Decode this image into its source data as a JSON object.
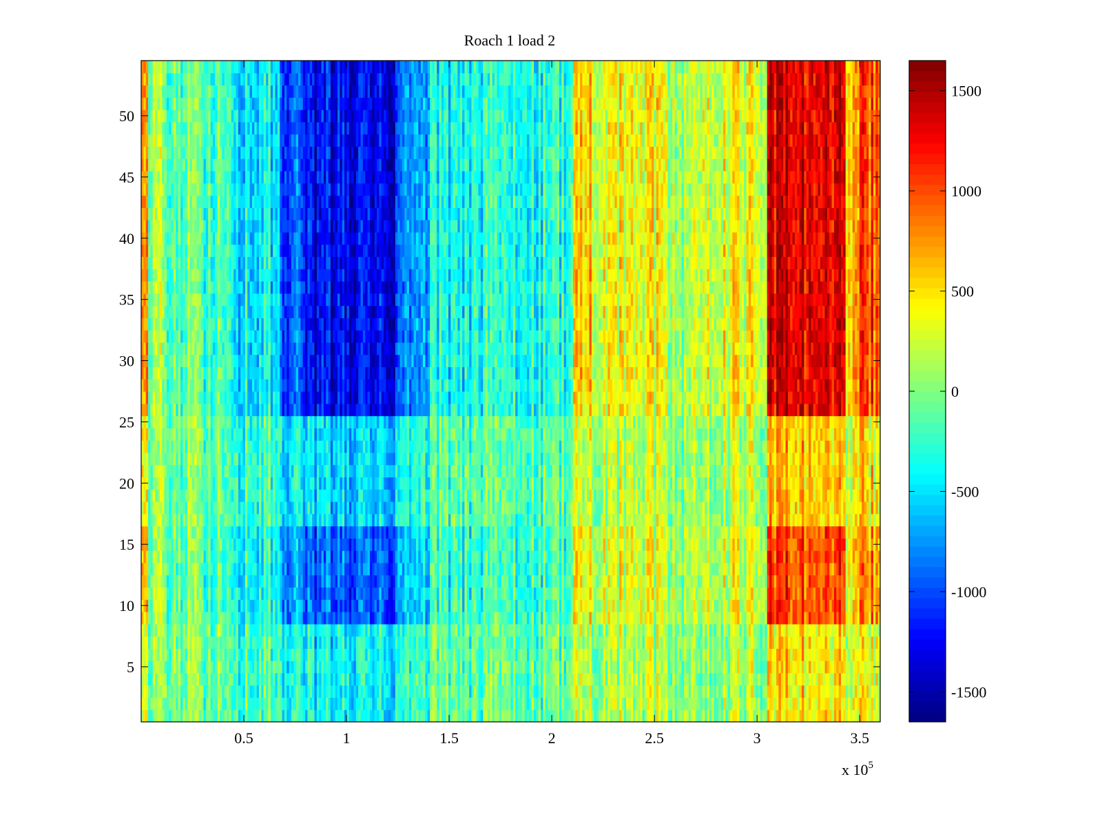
{
  "chart_data": {
    "type": "heatmap",
    "title": "Roach 1 load 2",
    "xlabel": "",
    "ylabel": "",
    "x_multiplier_label": "x 10",
    "x_multiplier_exponent": "5",
    "xlim": [
      0,
      3.6
    ],
    "ylim": [
      0.5,
      54.5
    ],
    "x_ticks": [
      0.5,
      1,
      1.5,
      2,
      2.5,
      3,
      3.5
    ],
    "x_tick_labels": [
      "0.5",
      "1",
      "1.5",
      "2",
      "2.5",
      "3",
      "3.5"
    ],
    "y_ticks": [
      5,
      10,
      15,
      20,
      25,
      30,
      35,
      40,
      45,
      50
    ],
    "y_tick_labels": [
      "5",
      "10",
      "15",
      "20",
      "25",
      "30",
      "35",
      "40",
      "45",
      "50"
    ],
    "rows": 54,
    "colormap": "jet",
    "colorbar": {
      "clim": [
        -1650,
        1650
      ],
      "ticks": [
        -1500,
        -1000,
        -500,
        0,
        500,
        1000,
        1500
      ],
      "tick_labels": [
        "-1500",
        "-1000",
        "-500",
        "0",
        "500",
        "1000",
        "1500"
      ]
    },
    "x_regions": [
      {
        "x0": 0.0,
        "x1": 0.03,
        "value": 600
      },
      {
        "x0": 0.03,
        "x1": 0.1,
        "value": 150
      },
      {
        "x0": 0.1,
        "x1": 0.45,
        "value": -150
      },
      {
        "x0": 0.45,
        "x1": 0.68,
        "value": -450
      },
      {
        "x0": 0.68,
        "x1": 0.8,
        "value": -1000
      },
      {
        "x0": 0.8,
        "x1": 1.25,
        "value": -1300
      },
      {
        "x0": 1.25,
        "x1": 1.4,
        "value": -800
      },
      {
        "x0": 1.4,
        "x1": 1.6,
        "value": -450
      },
      {
        "x0": 1.6,
        "x1": 2.1,
        "value": -350
      },
      {
        "x0": 2.1,
        "x1": 2.2,
        "value": 550
      },
      {
        "x0": 2.2,
        "x1": 2.55,
        "value": 350
      },
      {
        "x0": 2.55,
        "x1": 2.7,
        "value": 150
      },
      {
        "x0": 2.7,
        "x1": 3.05,
        "value": 350
      },
      {
        "x0": 3.05,
        "x1": 3.43,
        "value": 1350
      },
      {
        "x0": 3.43,
        "x1": 3.5,
        "value": 500
      },
      {
        "x0": 3.5,
        "x1": 3.6,
        "value": 1000
      }
    ],
    "row_intensity": [
      {
        "y0": 0.5,
        "y1": 8.5,
        "scale": 0.35
      },
      {
        "y0": 8.5,
        "y1": 16.5,
        "scale": 0.75
      },
      {
        "y0": 16.5,
        "y1": 25.5,
        "scale": 0.45
      },
      {
        "y0": 25.5,
        "y1": 54.5,
        "scale": 1.0
      }
    ]
  }
}
